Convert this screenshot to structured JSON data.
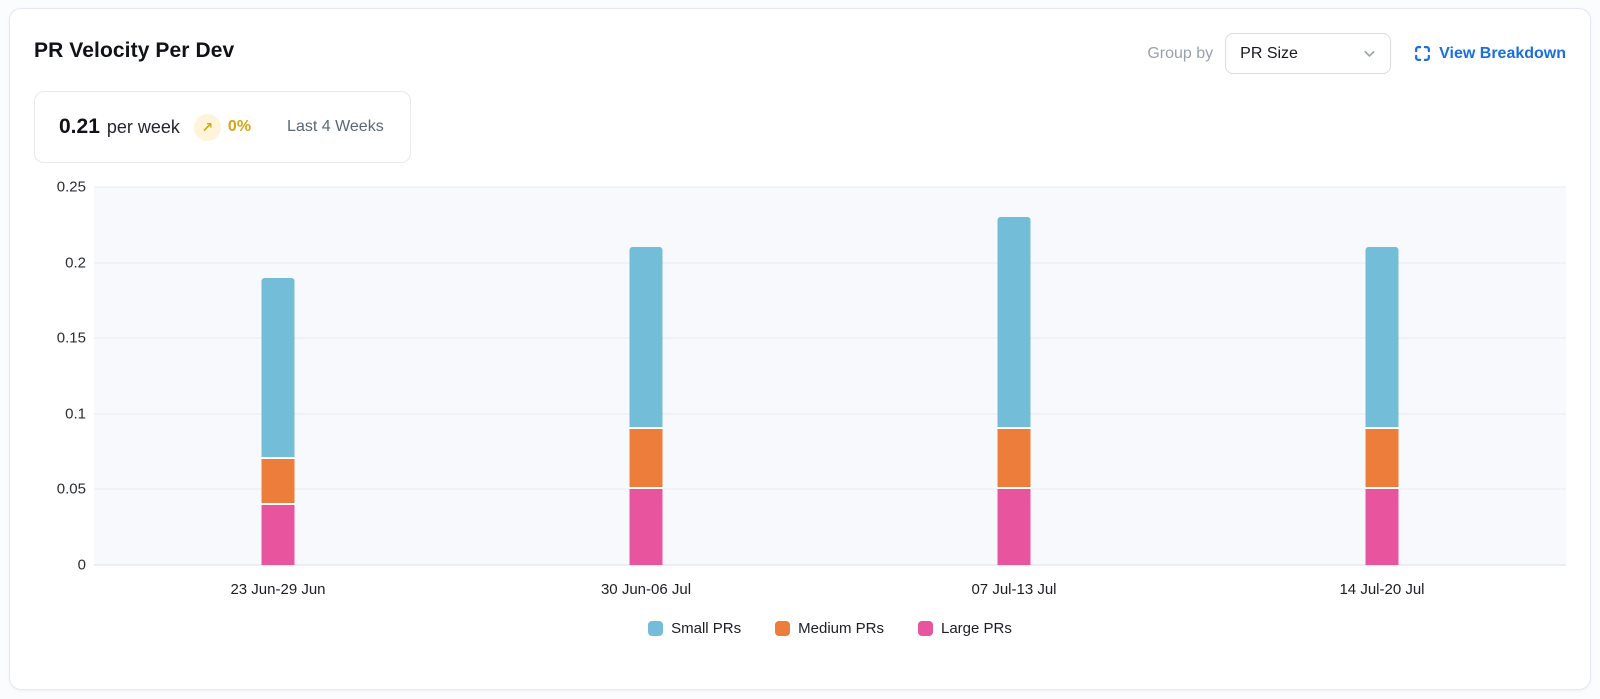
{
  "header": {
    "title": "PR Velocity Per Dev",
    "group_by_label": "Group by",
    "group_by_value": "PR Size",
    "view_breakdown_label": "View Breakdown",
    "link_color": "#1a6fdb"
  },
  "summary": {
    "value": "0.21",
    "unit": "per week",
    "trend_icon": "↗",
    "trend": "0%",
    "trend_color": "#d9a514",
    "trend_bg": "#fdf4da",
    "period": "Last 4 Weeks"
  },
  "chart_data": {
    "type": "bar",
    "stacked": true,
    "title": "PR Velocity Per Dev",
    "xlabel": "",
    "ylabel": "",
    "ylim": [
      0,
      0.25
    ],
    "yticks": [
      "0",
      "0.05",
      "0.1",
      "0.15",
      "0.2",
      "0.25"
    ],
    "grid": true,
    "legend_position": "bottom",
    "categories": [
      "23 Jun-29 Jun",
      "30 Jun-06 Jul",
      "07 Jul-13 Jul",
      "14 Jul-20 Jul"
    ],
    "series": [
      {
        "name": "Small PRs",
        "color": "#74bdd9",
        "values": [
          0.12,
          0.12,
          0.14,
          0.12
        ]
      },
      {
        "name": "Medium PRs",
        "color": "#ed7d3a",
        "values": [
          0.03,
          0.04,
          0.04,
          0.04
        ]
      },
      {
        "name": "Large PRs",
        "color": "#e9549e",
        "values": [
          0.04,
          0.05,
          0.05,
          0.05
        ]
      }
    ],
    "stack_order_bottom_to_top": [
      "Large PRs",
      "Medium PRs",
      "Small PRs"
    ],
    "totals": [
      0.19,
      0.21,
      0.23,
      0.21
    ]
  }
}
